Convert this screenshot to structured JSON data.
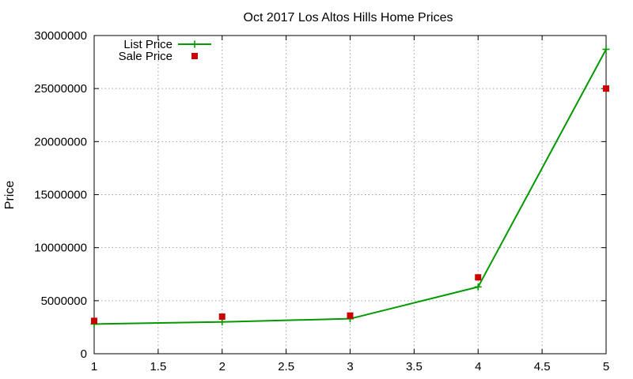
{
  "chart_data": {
    "type": "line",
    "title": "Oct 2017 Los Altos Hills Home Prices",
    "xlabel": "",
    "ylabel": "Price",
    "xlim": [
      1,
      5
    ],
    "ylim": [
      0,
      30000000
    ],
    "x_ticks": [
      1,
      1.5,
      2,
      2.5,
      3,
      3.5,
      4,
      4.5,
      5
    ],
    "y_ticks": [
      0,
      5000000,
      10000000,
      15000000,
      20000000,
      25000000,
      30000000
    ],
    "grid": true,
    "legend_position": "top-left",
    "series": [
      {
        "name": "List Price",
        "style": "lines+points",
        "marker": "plus",
        "color": "#009900",
        "x": [
          1,
          2,
          3,
          4,
          5
        ],
        "y": [
          2800000,
          3000000,
          3300000,
          6300000,
          28700000
        ]
      },
      {
        "name": "Sale Price",
        "style": "points",
        "marker": "square",
        "color": "#cc0000",
        "x": [
          1,
          2,
          3,
          4,
          5
        ],
        "y": [
          3100000,
          3500000,
          3600000,
          7200000,
          25000000
        ]
      }
    ]
  }
}
